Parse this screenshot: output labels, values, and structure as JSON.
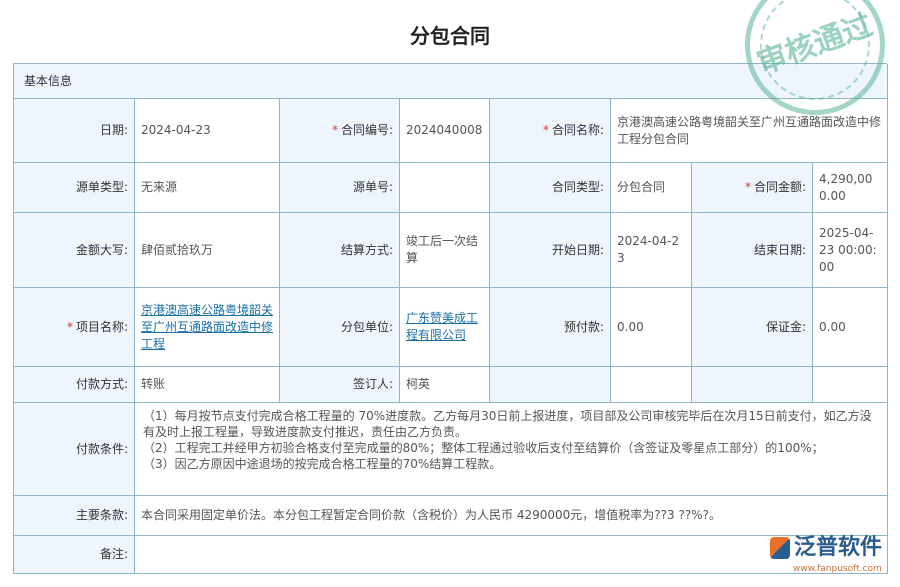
{
  "title": "分包合同",
  "section": "基本信息",
  "fields": {
    "date": {
      "label": "日期:",
      "value": "2024-04-23"
    },
    "contract_no": {
      "label": "合同编号:",
      "value": "2024040008"
    },
    "contract_name": {
      "label": "合同名称:",
      "value": "京港澳高速公路粤境韶关至广州互通路面改造中修工程分包合同"
    },
    "source_type": {
      "label": "源单类型:",
      "value": "无来源"
    },
    "source_no": {
      "label": "源单号:",
      "value": ""
    },
    "contract_type": {
      "label": "合同类型:",
      "value": "分包合同"
    },
    "contract_amount": {
      "label": "合同金额:",
      "value": "4,290,000.00"
    },
    "amount_upper": {
      "label": "金额大写:",
      "value": "肆佰贰拾玖万"
    },
    "settle": {
      "label": "结算方式:",
      "value": "竣工后一次结算"
    },
    "start": {
      "label": "开始日期:",
      "value": "2024-04-23"
    },
    "end": {
      "label": "结束日期:",
      "value": "2025-04-23 00:00:00"
    },
    "project": {
      "label": "项目名称:",
      "value": "京港澳高速公路粤境韶关至广州互通路面改造中修工程"
    },
    "sub_unit": {
      "label": "分包单位:",
      "value": "广东赞美成工程有限公司"
    },
    "prepay": {
      "label": "预付款:",
      "value": "0.00"
    },
    "deposit": {
      "label": "保证金:",
      "value": "0.00"
    },
    "pay_method": {
      "label": "付款方式:",
      "value": "转账"
    },
    "signer": {
      "label": "签订人:",
      "value": "柯英"
    },
    "pay_terms": {
      "label": "付款条件:",
      "lines": [
        "（1）每月按节点支付完成合格工程量的 70%进度款。乙方每月30日前上报进度，项目部及公司审核完毕后在次月15日前支付，如乙方没有及时上报工程量，导致进度款支付推迟，责任由乙方负责。",
        "（2）工程完工并经甲方初验合格支付至完成量的80%；整体工程通过验收后支付至结算价（含签证及零星点工部分）的100%；",
        "（3）因乙方原因中途退场的按完成合格工程量的70%结算工程款。"
      ]
    },
    "main_terms": {
      "label": "主要条款:",
      "value": "本合同采用固定单价法。本分包工程暂定合同价款（含税价）为人民币 4290000元，增值税率为??3 ??%?。"
    },
    "remark": {
      "label": "备注:",
      "value": ""
    }
  },
  "stamp": "审核通过",
  "logo": {
    "name": "泛普软件",
    "url": "www.fanpusoft.com"
  },
  "colors": {
    "label_bg": "#eef5fc",
    "border": "#8fb5c8",
    "link": "#1a6fa8",
    "required": "#dd3333"
  }
}
